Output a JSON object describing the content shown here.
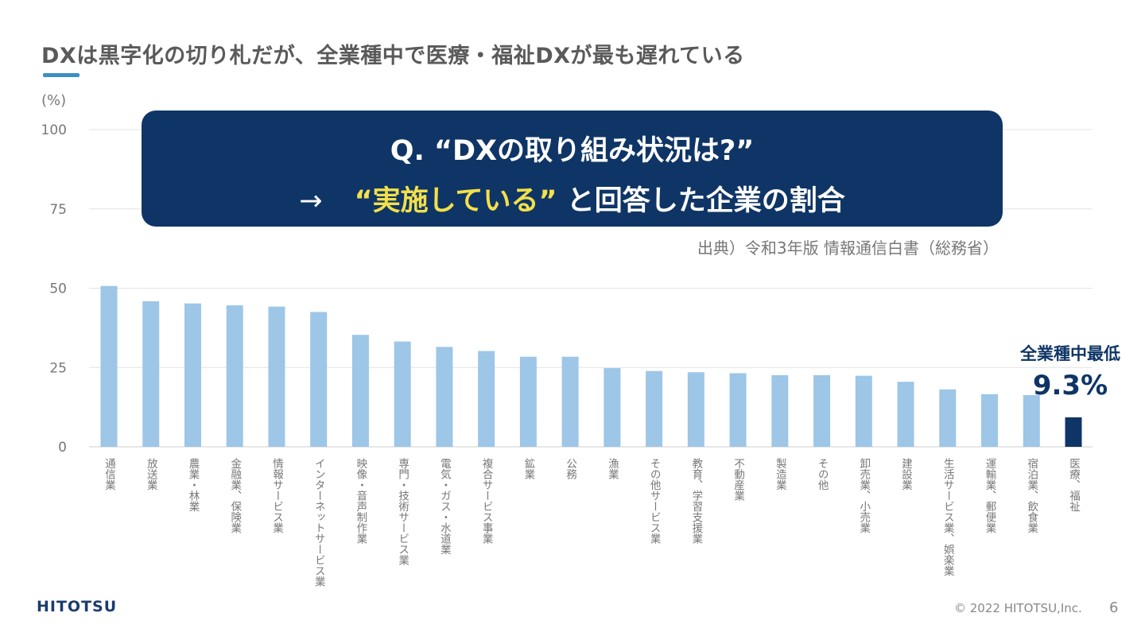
{
  "header": {
    "title": "DXは黒字化の切り札だが、全業種中で医療・福祉DXが最も遅れている"
  },
  "callout": {
    "question": "Q. “DXの取り組み状況は?”",
    "arrow": "→",
    "answer_highlight": "“実施している”",
    "answer_rest": " と回答した企業の割合"
  },
  "source": "出典）令和3年版 情報通信白書（総務省）",
  "annotation": {
    "label": "全業種中最低",
    "value": "9.3%"
  },
  "footer": {
    "logo": "HITOTSU",
    "copyright": "© 2022 HITOTSU,Inc.",
    "page": "6"
  },
  "chart_data": {
    "type": "bar",
    "ylabel": "(%)",
    "ylim": [
      0,
      100
    ],
    "yticks": [
      0,
      25,
      50,
      75,
      100
    ],
    "grid": true,
    "categories": [
      "通信業",
      "放送業",
      "農業・林業",
      "金融業、保険業",
      "情報サービス業",
      "インターネットサービス業",
      "映像・音声制作業",
      "専門・技術サービス業",
      "電気・ガス・水道業",
      "複合サービス事業",
      "鉱業",
      "公務",
      "漁業",
      "その他サービス業",
      "教育、学習支援業",
      "不動産業",
      "製造業",
      "その他",
      "卸売業、小売業",
      "建設業",
      "生活サービス業、娯楽業",
      "運輸業、郵便業",
      "宿泊業、飲食業",
      "医療、福祉"
    ],
    "values": [
      50.7,
      45.9,
      45.2,
      44.6,
      44.2,
      42.5,
      35.3,
      33.2,
      31.5,
      30.2,
      28.4,
      28.4,
      24.8,
      23.9,
      23.5,
      23.2,
      22.6,
      22.6,
      22.4,
      20.5,
      18.1,
      16.6,
      16.3,
      9.3
    ],
    "colors": {
      "default": "#9dc6e7",
      "highlight": "#0f3566"
    },
    "highlight_index": 23
  }
}
